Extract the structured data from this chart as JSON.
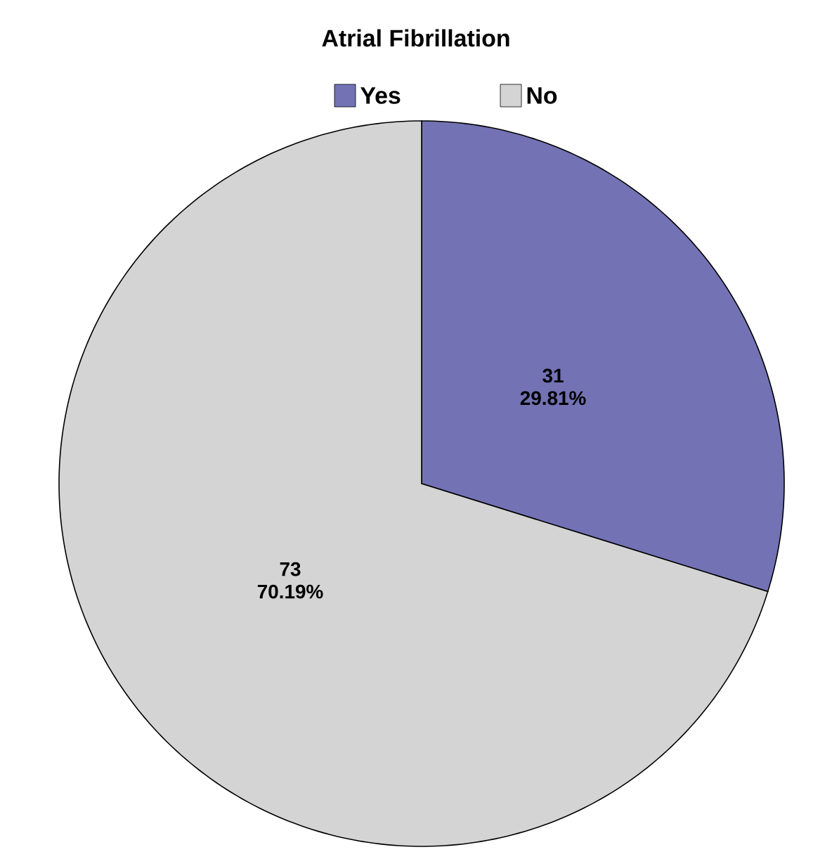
{
  "chart_data": {
    "type": "pie",
    "title": "Atrial Fibrillation",
    "categories": [
      "Yes",
      "No"
    ],
    "values": [
      31,
      73
    ],
    "colors": [
      "#7272b4",
      "#d4d4d4"
    ],
    "value_labels": [
      "31 29.81%",
      "73 70.19%"
    ],
    "legend": "top"
  }
}
